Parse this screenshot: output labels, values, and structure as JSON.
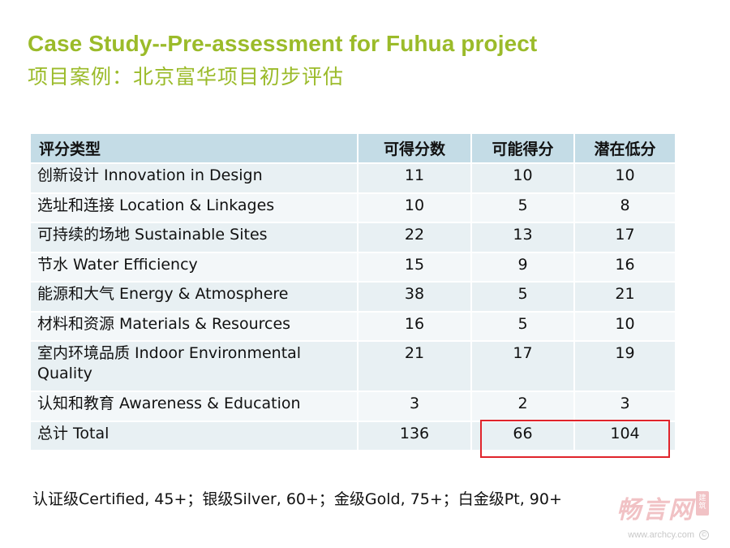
{
  "title": {
    "en": "Case Study--Pre-assessment for Fuhua project",
    "zh": "项目案例：北京富华项目初步评估"
  },
  "table": {
    "headers": [
      "评分类型",
      "可得分数",
      "可能得分",
      "潜在低分"
    ],
    "rows": [
      {
        "category": "创新设计 Innovation in Design",
        "available": "11",
        "possible": "10",
        "potential_low": "10"
      },
      {
        "category": "选址和连接 Location & Linkages",
        "available": "10",
        "possible": "5",
        "potential_low": "8"
      },
      {
        "category": "可持续的场地 Sustainable Sites",
        "available": "22",
        "possible": "13",
        "potential_low": "17"
      },
      {
        "category": "节水 Water Efficiency",
        "available": "15",
        "possible": "9",
        "potential_low": "16"
      },
      {
        "category": "能源和大气 Energy & Atmosphere",
        "available": "38",
        "possible": "5",
        "potential_low": "21"
      },
      {
        "category": "材料和资源 Materials & Resources",
        "available": "16",
        "possible": "5",
        "potential_low": "10"
      },
      {
        "category": "室内环境品质 Indoor Environmental Quality",
        "available": "21",
        "possible": "17",
        "potential_low": "19"
      },
      {
        "category": "认知和教育 Awareness & Education",
        "available": "3",
        "possible": "2",
        "potential_low": "3"
      },
      {
        "category": "总计 Total",
        "available": "136",
        "possible": "66",
        "potential_low": "104"
      }
    ]
  },
  "certification_note": "认证级Certified, 45+；银级Silver, 60+；金级Gold, 75+；白金级Pt, 90+",
  "watermark": {
    "logo_text": "畅言网",
    "badge_text": "建筑",
    "url": "www.archcy.com",
    "copyright_symbol": "©"
  },
  "colors": {
    "title": "#9bbb2a",
    "header_bg": "#c4dce6",
    "row_bg_odd": "#e8f0f3",
    "row_bg_even": "#f3f7f9",
    "highlight_border": "#e0242b"
  }
}
